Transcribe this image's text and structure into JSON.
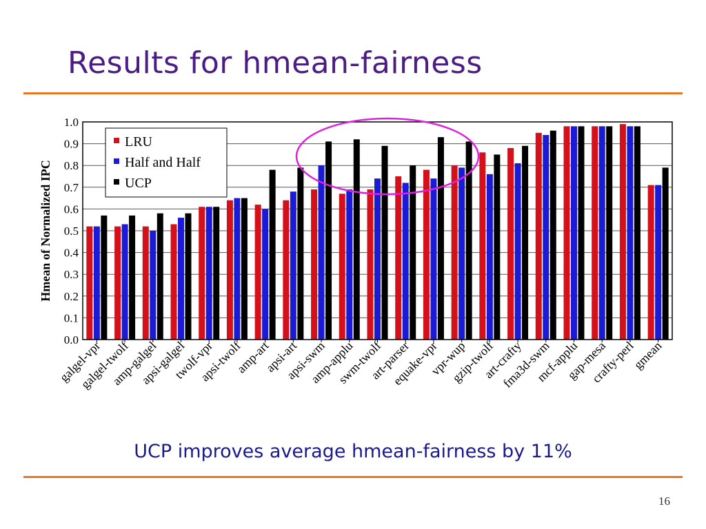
{
  "slide": {
    "title": "Results for hmean-fairness",
    "caption": "UCP improves average hmean-fairness by 11%",
    "page_number": "16"
  },
  "colors": {
    "title": "#4B1C84",
    "rule": "#E87722",
    "lru": "#D4111B",
    "half": "#1B1BD6",
    "ucp": "#000000",
    "highlight": "#E020E0"
  },
  "chart_data": {
    "type": "bar",
    "ylabel": "Hmean of Normalized IPC",
    "ylim": [
      0.0,
      1.0
    ],
    "yticks": [
      "0.0",
      "0.1",
      "0.2",
      "0.3",
      "0.4",
      "0.5",
      "0.6",
      "0.7",
      "0.8",
      "0.9",
      "1.0"
    ],
    "grid": true,
    "legend_position": "top-left",
    "categories": [
      "galgel-vpr",
      "galgel-twolf",
      "amp-galgel",
      "apsi-galgel",
      "twolf-vpr",
      "apsi-twolf",
      "amp-art",
      "apsi-art",
      "apsi-swm",
      "amp-applu",
      "swm-twolf",
      "art-parser",
      "equake-vpr",
      "vpr-wup",
      "gzip-twolf",
      "art-crafty",
      "fma3d-swm",
      "mcf-applu",
      "gap-mesa",
      "crafty-perl",
      "gmean"
    ],
    "series": [
      {
        "name": "LRU",
        "color": "#D4111B",
        "values": [
          0.52,
          0.52,
          0.52,
          0.53,
          0.61,
          0.64,
          0.62,
          0.64,
          0.69,
          0.67,
          0.69,
          0.75,
          0.78,
          0.8,
          0.86,
          0.88,
          0.95,
          0.98,
          0.98,
          0.99,
          0.71
        ]
      },
      {
        "name": "Half and Half",
        "color": "#1B1BD6",
        "values": [
          0.52,
          0.53,
          0.5,
          0.56,
          0.61,
          0.65,
          0.6,
          0.68,
          0.8,
          0.69,
          0.74,
          0.72,
          0.74,
          0.79,
          0.76,
          0.81,
          0.94,
          0.98,
          0.98,
          0.98,
          0.71
        ]
      },
      {
        "name": "UCP",
        "color": "#000000",
        "values": [
          0.57,
          0.57,
          0.58,
          0.58,
          0.61,
          0.65,
          0.78,
          0.79,
          0.91,
          0.92,
          0.89,
          0.8,
          0.93,
          0.91,
          0.85,
          0.89,
          0.96,
          0.98,
          0.98,
          0.98,
          0.79
        ]
      }
    ],
    "highlight": "ellipse around apsi-swm to gzip-twolf UCP bar tops"
  }
}
